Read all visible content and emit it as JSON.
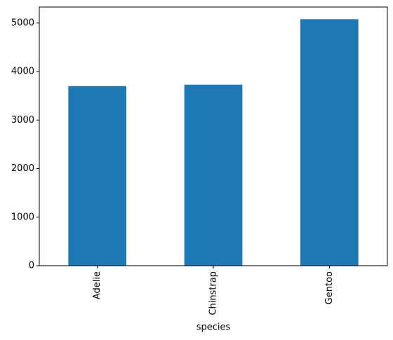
{
  "chart_data": {
    "type": "bar",
    "x_label": "species",
    "categories": [
      "Adelie",
      "Chinstrap",
      "Gentoo"
    ],
    "values": [
      3700,
      3730,
      5080
    ],
    "color": "#1f77b4",
    "ylim": [
      0,
      5330
    ],
    "yticks": [
      0,
      1000,
      2000,
      3000,
      4000,
      5000
    ],
    "grid": false
  }
}
